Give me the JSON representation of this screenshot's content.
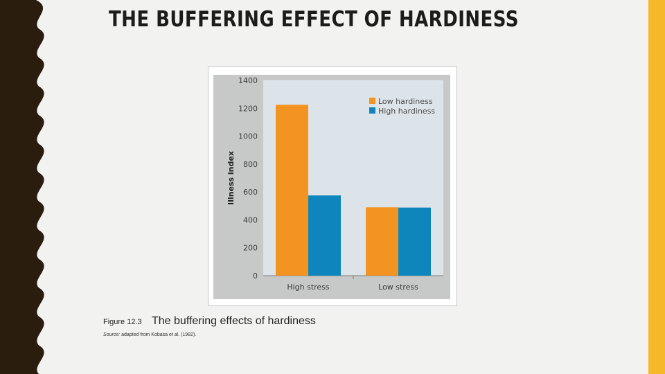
{
  "slide": {
    "title": "THE BUFFERING EFFECT OF HARDINESS",
    "colors": {
      "background": "#f2f2f0",
      "left_border": "#2b1d0e",
      "right_stripe": "#f6b829"
    }
  },
  "figure": {
    "number": "Figure 12.3",
    "caption": "The buffering effects of hardiness",
    "source_label": "Source:",
    "source_text": "adapted from Kobasa et al. (1982)."
  },
  "chart_data": {
    "type": "bar",
    "categories": [
      "High stress",
      "Low stress"
    ],
    "series": [
      {
        "name": "Low hardiness",
        "values": [
          1225,
          490
        ],
        "color": "#f39321"
      },
      {
        "name": "High hardiness",
        "values": [
          575,
          488
        ],
        "color": "#0e86bd"
      }
    ],
    "ylabel": "Illness index",
    "xlabel": "",
    "ylim": [
      0,
      1400
    ],
    "yticks": [
      0,
      200,
      400,
      600,
      800,
      1000,
      1200,
      1400
    ],
    "legend": "top-right",
    "grid": false,
    "plot_background": "#dde4e9",
    "frame_background": "#c6c9c8"
  }
}
